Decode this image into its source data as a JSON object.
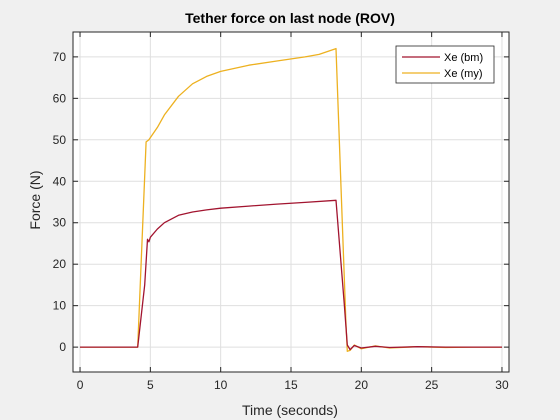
{
  "chart_data": {
    "type": "line",
    "title": "Tether force on last node (ROV)",
    "xlabel": "Time (seconds)",
    "ylabel": "Force (N)",
    "xlim": [
      -0.5,
      30.5
    ],
    "ylim": [
      -6,
      76
    ],
    "xticks": [
      0,
      5,
      10,
      15,
      20,
      25,
      30
    ],
    "yticks": [
      0,
      10,
      20,
      30,
      40,
      50,
      60,
      70
    ],
    "grid": true,
    "legend_position": "top-right",
    "series": [
      {
        "name": "Xe (bm)",
        "color": "#A2142F",
        "points": [
          [
            0,
            0
          ],
          [
            4.1,
            0
          ],
          [
            4.6,
            15
          ],
          [
            4.8,
            26
          ],
          [
            4.9,
            25.4
          ],
          [
            5.0,
            26.5
          ],
          [
            5.5,
            28.5
          ],
          [
            6,
            30
          ],
          [
            7,
            31.8
          ],
          [
            8,
            32.6
          ],
          [
            9,
            33.1
          ],
          [
            10,
            33.5
          ],
          [
            12,
            34
          ],
          [
            14,
            34.5
          ],
          [
            16,
            34.9
          ],
          [
            18.2,
            35.4
          ],
          [
            18.8,
            10
          ],
          [
            19.0,
            0.5
          ],
          [
            19.2,
            -0.6
          ],
          [
            19.5,
            0.4
          ],
          [
            20,
            -0.2
          ],
          [
            21,
            0.2
          ],
          [
            22,
            -0.1
          ],
          [
            24,
            0.1
          ],
          [
            26,
            0
          ],
          [
            28,
            0
          ],
          [
            30,
            0
          ]
        ]
      },
      {
        "name": "Xe (my)",
        "color": "#EDB120",
        "points": [
          [
            0,
            0
          ],
          [
            4.1,
            0
          ],
          [
            4.7,
            49.5
          ],
          [
            4.9,
            50
          ],
          [
            5.5,
            53
          ],
          [
            6,
            56
          ],
          [
            7,
            60.5
          ],
          [
            8,
            63.5
          ],
          [
            9,
            65.3
          ],
          [
            10,
            66.5
          ],
          [
            12,
            68
          ],
          [
            14,
            69
          ],
          [
            16,
            70
          ],
          [
            17,
            70.6
          ],
          [
            18.2,
            72
          ],
          [
            18.9,
            6
          ],
          [
            19.0,
            -1
          ],
          [
            19.2,
            -0.8
          ],
          [
            19.5,
            0.5
          ],
          [
            20,
            -0.4
          ],
          [
            21,
            0.3
          ],
          [
            22,
            -0.2
          ],
          [
            24,
            0.1
          ],
          [
            26,
            -0.1
          ],
          [
            28,
            0
          ],
          [
            30,
            0
          ]
        ]
      }
    ]
  }
}
